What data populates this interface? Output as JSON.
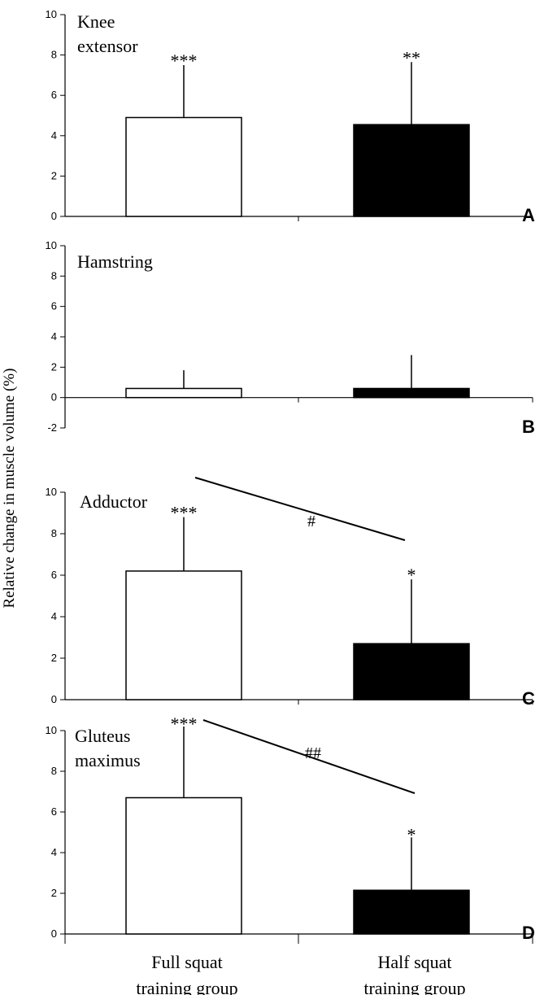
{
  "ylabel": "Relative change in muscle volume (%)",
  "categories": [
    "Full squat training group",
    "Half squat training group"
  ],
  "category_lines": [
    [
      "Full squat",
      "training group"
    ],
    [
      "Half squat",
      "training group"
    ]
  ],
  "colors": {
    "full": "#ffffff",
    "half": "#000000"
  },
  "chart_data": [
    {
      "type": "bar",
      "panel": "A",
      "title_lines": [
        "Knee",
        "extensor"
      ],
      "categories": [
        "Full squat training group",
        "Half squat training group"
      ],
      "values": [
        4.9,
        4.55
      ],
      "errors": [
        2.6,
        3.1
      ],
      "significance": [
        "***",
        "**"
      ],
      "ylim": [
        0,
        10
      ],
      "yticks": [
        0,
        2,
        4,
        6,
        8,
        10
      ],
      "between_groups": null
    },
    {
      "type": "bar",
      "panel": "B",
      "title_lines": [
        "Hamstring"
      ],
      "categories": [
        "Full squat training group",
        "Half squat training group"
      ],
      "values": [
        0.6,
        0.6
      ],
      "errors": [
        1.2,
        2.2
      ],
      "significance": [
        "",
        ""
      ],
      "ylim": [
        -2,
        10
      ],
      "yticks": [
        -2,
        0,
        2,
        4,
        6,
        8,
        10
      ],
      "between_groups": null
    },
    {
      "type": "bar",
      "panel": "C",
      "title_lines": [
        "Adductor"
      ],
      "categories": [
        "Full squat training group",
        "Half squat training group"
      ],
      "values": [
        6.2,
        2.7
      ],
      "errors": [
        2.6,
        3.1
      ],
      "significance": [
        "***",
        "*"
      ],
      "ylim": [
        0,
        10
      ],
      "yticks": [
        0,
        2,
        4,
        6,
        8,
        10
      ],
      "between_groups": "#"
    },
    {
      "type": "bar",
      "panel": "D",
      "title_lines": [
        "Gluteus",
        "maximus"
      ],
      "categories": [
        "Full squat training group",
        "Half squat training group"
      ],
      "values": [
        6.7,
        2.15
      ],
      "errors": [
        3.5,
        2.6
      ],
      "significance": [
        "***",
        "*"
      ],
      "ylim": [
        0,
        10
      ],
      "yticks": [
        0,
        2,
        4,
        6,
        8,
        10
      ],
      "between_groups": "##"
    }
  ]
}
